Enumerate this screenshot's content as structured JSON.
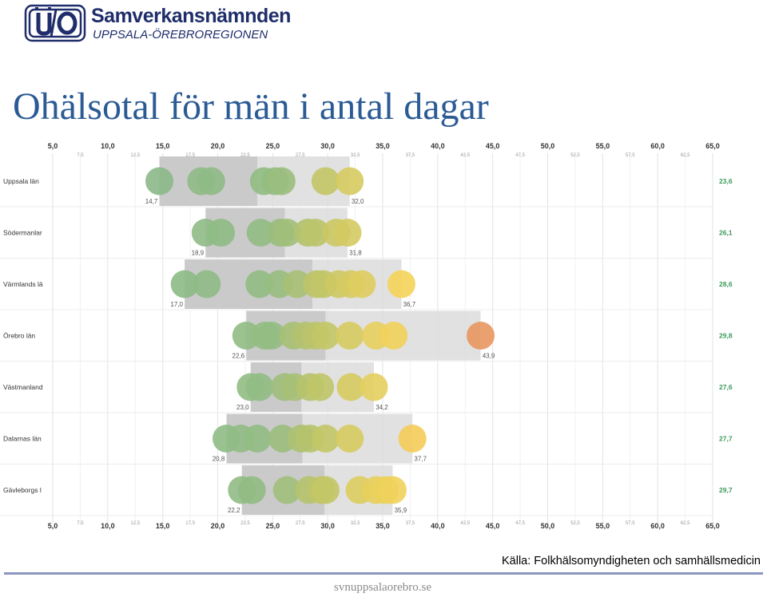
{
  "header": {
    "org_name": "Samverkansnämnden",
    "org_sub": "UPPSALA-ÖREBROREGIONEN"
  },
  "page_title": "Ohälsotal för män i antal dagar",
  "source": "Källa: Folkhälsomyndigheten och samhällsmedicin",
  "footer_url": "svnuppsalaorebro.se",
  "colors": {
    "title": "#2b5b95",
    "logo": "#1f2d6b",
    "range_bar": "#dcdcdc",
    "mean_bar": "#c8c8c8",
    "average_label": "#3a9a5a",
    "footer_line": "#8c96be"
  },
  "chart_data": {
    "type": "scatter",
    "xlim": [
      5,
      65
    ],
    "major_ticks": [
      "5,0",
      "10,0",
      "15,0",
      "20,0",
      "25,0",
      "30,0",
      "35,0",
      "40,0",
      "45,0",
      "50,0",
      "55,0",
      "60,0",
      "65,0"
    ],
    "minor_ticks": [
      "7,5",
      "12,5",
      "17,5",
      "22,5",
      "27,5",
      "32,5",
      "37,5",
      "42,5",
      "47,5",
      "52,5",
      "57,5",
      "62,5"
    ],
    "grid": true,
    "rows": [
      {
        "label": "Uppsala län",
        "min": 14.7,
        "max": 32.0,
        "min_label": "14,7",
        "max_label": "32,0",
        "mean": 23.6,
        "mean_label": "23,6",
        "points": [
          14.7,
          18.5,
          19.4,
          24.2,
          25.2,
          25.8,
          29.8,
          32.0
        ]
      },
      {
        "label": "Södermanlar",
        "min": 18.9,
        "max": 31.8,
        "min_label": "18,9",
        "max_label": "31,8",
        "mean": 26.1,
        "mean_label": "26,1",
        "points": [
          18.9,
          20.3,
          23.9,
          25.7,
          26.3,
          28.2,
          28.9,
          30.8,
          31.8
        ]
      },
      {
        "label": "Värmlands lä",
        "min": 17.0,
        "max": 36.7,
        "min_label": "17,0",
        "max_label": "36,7",
        "mean": 28.6,
        "mean_label": "28,6",
        "points": [
          17.0,
          19.0,
          23.8,
          25.6,
          27.2,
          29.0,
          29.6,
          31.0,
          32.1,
          33.1,
          36.7
        ]
      },
      {
        "label": "Örebro län",
        "min": 22.6,
        "max": 43.9,
        "min_label": "22,6",
        "max_label": "43,9",
        "mean": 29.8,
        "mean_label": "29,8",
        "points": [
          22.6,
          24.3,
          24.9,
          26.9,
          28.0,
          28.9,
          29.8,
          32.0,
          34.4,
          36.0,
          43.9
        ]
      },
      {
        "label": "Västmanland",
        "min": 23.0,
        "max": 34.2,
        "min_label": "23,0",
        "max_label": "34,2",
        "mean": 27.6,
        "mean_label": "27,6",
        "points": [
          23.0,
          23.8,
          26.1,
          27.0,
          28.4,
          29.3,
          32.1,
          34.2
        ]
      },
      {
        "label": "Dalarnas län",
        "min": 20.8,
        "max": 37.7,
        "min_label": "20,8",
        "max_label": "37,7",
        "mean": 27.7,
        "mean_label": "27,7",
        "points": [
          20.8,
          22.1,
          23.6,
          25.9,
          27.6,
          28.4,
          29.8,
          32.0,
          37.7
        ]
      },
      {
        "label": "Gävleborgs l",
        "min": 22.2,
        "max": 35.9,
        "min_label": "22,2",
        "max_label": "35,9",
        "mean": 29.7,
        "mean_label": "29,7",
        "points": [
          22.2,
          23.1,
          26.3,
          28.3,
          29.4,
          29.8,
          32.9,
          34.4,
          35.2,
          35.9
        ]
      }
    ]
  }
}
